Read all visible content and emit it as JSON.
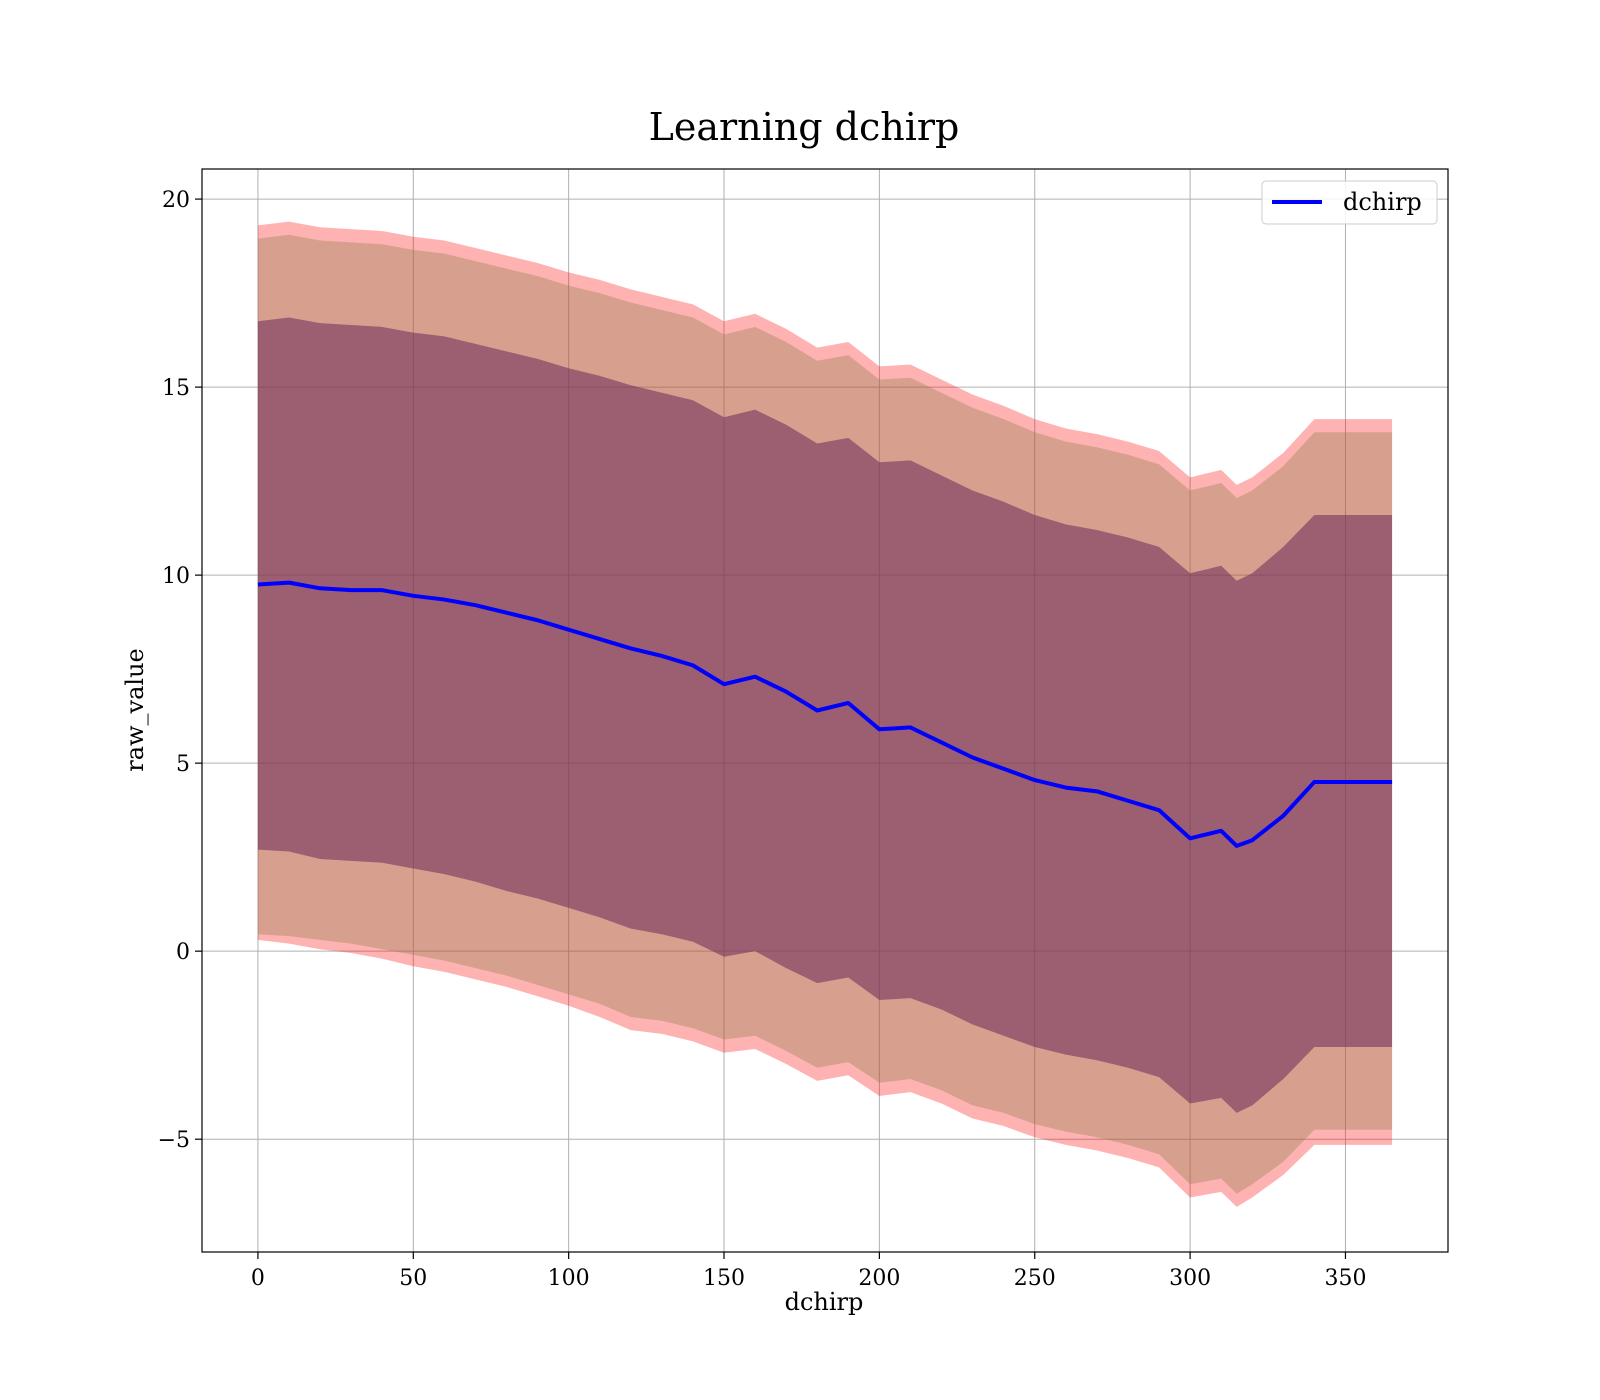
{
  "chart_data": {
    "type": "line",
    "title": "Learning dchirp",
    "xlabel": "dchirp",
    "ylabel": "raw_value",
    "xlim": [
      -18,
      383
    ],
    "ylim": [
      -8,
      20.8
    ],
    "xticks": [
      0,
      50,
      100,
      150,
      200,
      250,
      300,
      350
    ],
    "xtick_labels": [
      "0",
      "50",
      "100",
      "150",
      "200",
      "250",
      "300",
      "350"
    ],
    "yticks": [
      -5,
      0,
      5,
      10,
      15,
      20
    ],
    "ytick_labels": [
      "−5",
      "0",
      "5",
      "10",
      "15",
      "20"
    ],
    "grid": true,
    "legend": {
      "placement": "top-right",
      "entries": [
        "dchirp"
      ]
    },
    "colors": {
      "line": "#0000ff",
      "outer_band": "#ff0000",
      "middle_band": "#8b7d4a",
      "inner_band": "#6b2a5a"
    },
    "x": [
      0,
      10,
      20,
      30,
      40,
      50,
      60,
      70,
      80,
      90,
      100,
      110,
      120,
      130,
      140,
      150,
      160,
      170,
      180,
      190,
      200,
      210,
      220,
      230,
      240,
      250,
      260,
      270,
      280,
      290,
      300,
      310,
      315,
      320,
      330,
      340,
      350,
      365
    ],
    "series": [
      {
        "name": "dchirp",
        "values": [
          9.75,
          9.8,
          9.65,
          9.6,
          9.6,
          9.45,
          9.35,
          9.2,
          9.0,
          8.8,
          8.55,
          8.3,
          8.05,
          7.85,
          7.6,
          7.1,
          7.3,
          6.9,
          6.4,
          6.6,
          5.9,
          5.95,
          5.55,
          5.15,
          4.85,
          4.55,
          4.35,
          4.25,
          4.0,
          3.75,
          3.0,
          3.2,
          2.8,
          2.95,
          3.6,
          4.5,
          4.5,
          4.5
        ]
      }
    ],
    "bands": [
      {
        "lower": [
          0.3,
          0.2,
          0.05,
          -0.05,
          -0.2,
          -0.4,
          -0.55,
          -0.75,
          -0.95,
          -1.2,
          -1.45,
          -1.75,
          -2.1,
          -2.2,
          -2.4,
          -2.7,
          -2.6,
          -3.0,
          -3.45,
          -3.3,
          -3.85,
          -3.75,
          -4.05,
          -4.45,
          -4.65,
          -4.95,
          -5.15,
          -5.3,
          -5.5,
          -5.75,
          -6.55,
          -6.4,
          -6.8,
          -6.55,
          -5.95,
          -5.15,
          -5.15,
          -5.15
        ],
        "upper": [
          19.3,
          19.4,
          19.25,
          19.2,
          19.15,
          19.0,
          18.9,
          18.7,
          18.5,
          18.3,
          18.05,
          17.85,
          17.6,
          17.4,
          17.2,
          16.75,
          16.95,
          16.55,
          16.05,
          16.2,
          15.55,
          15.6,
          15.2,
          14.8,
          14.5,
          14.15,
          13.9,
          13.75,
          13.55,
          13.3,
          12.6,
          12.8,
          12.4,
          12.6,
          13.25,
          14.15,
          14.15,
          14.15
        ]
      },
      {
        "lower": [
          0.45,
          0.4,
          0.3,
          0.2,
          0.05,
          -0.1,
          -0.25,
          -0.45,
          -0.65,
          -0.9,
          -1.15,
          -1.4,
          -1.75,
          -1.85,
          -2.05,
          -2.35,
          -2.25,
          -2.65,
          -3.1,
          -2.95,
          -3.5,
          -3.4,
          -3.7,
          -4.1,
          -4.3,
          -4.6,
          -4.8,
          -4.95,
          -5.15,
          -5.4,
          -6.2,
          -6.05,
          -6.45,
          -6.2,
          -5.6,
          -4.75,
          -4.75,
          -4.75
        ],
        "upper": [
          18.95,
          19.05,
          18.9,
          18.85,
          18.8,
          18.65,
          18.55,
          18.35,
          18.15,
          17.95,
          17.7,
          17.5,
          17.25,
          17.05,
          16.85,
          16.4,
          16.6,
          16.2,
          15.7,
          15.85,
          15.2,
          15.25,
          14.85,
          14.45,
          14.15,
          13.8,
          13.55,
          13.4,
          13.2,
          12.95,
          12.25,
          12.45,
          12.05,
          12.25,
          12.9,
          13.8,
          13.8,
          13.8
        ]
      },
      {
        "lower": [
          2.7,
          2.65,
          2.45,
          2.4,
          2.35,
          2.2,
          2.05,
          1.85,
          1.6,
          1.4,
          1.15,
          0.9,
          0.6,
          0.45,
          0.25,
          -0.15,
          0.0,
          -0.45,
          -0.85,
          -0.7,
          -1.3,
          -1.25,
          -1.55,
          -1.95,
          -2.25,
          -2.55,
          -2.75,
          -2.9,
          -3.1,
          -3.35,
          -4.05,
          -3.9,
          -4.3,
          -4.1,
          -3.4,
          -2.55,
          -2.55,
          -2.55
        ],
        "upper": [
          16.75,
          16.85,
          16.7,
          16.65,
          16.6,
          16.45,
          16.35,
          16.15,
          15.95,
          15.75,
          15.5,
          15.3,
          15.05,
          14.85,
          14.65,
          14.2,
          14.4,
          14.0,
          13.5,
          13.65,
          13.0,
          13.05,
          12.65,
          12.25,
          11.95,
          11.6,
          11.35,
          11.2,
          11.0,
          10.75,
          10.05,
          10.25,
          9.85,
          10.05,
          10.75,
          11.6,
          11.6,
          11.6
        ]
      }
    ]
  }
}
